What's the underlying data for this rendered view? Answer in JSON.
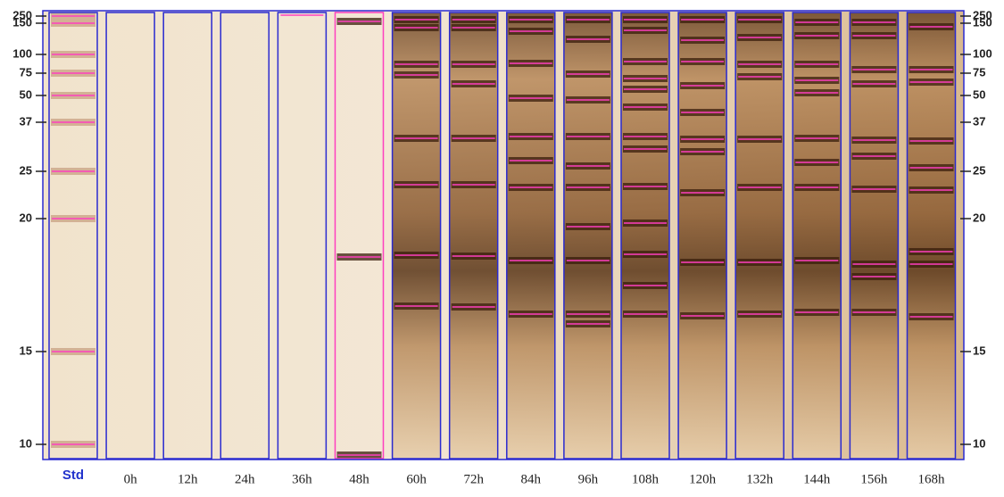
{
  "markers": {
    "left": [
      "250",
      "150",
      "100",
      "75",
      "50",
      "37",
      "25",
      "20",
      "15",
      "10"
    ],
    "right": [
      "250",
      "150",
      "100",
      "75",
      "50",
      "37",
      "25",
      "20",
      "15",
      "10"
    ]
  },
  "lanes": [
    "Std",
    "0h",
    "12h",
    "24h",
    "36h",
    "48h",
    "60h",
    "72h",
    "84h",
    "96h",
    "108h",
    "120h",
    "132h",
    "144h",
    "156h",
    "168h"
  ]
}
